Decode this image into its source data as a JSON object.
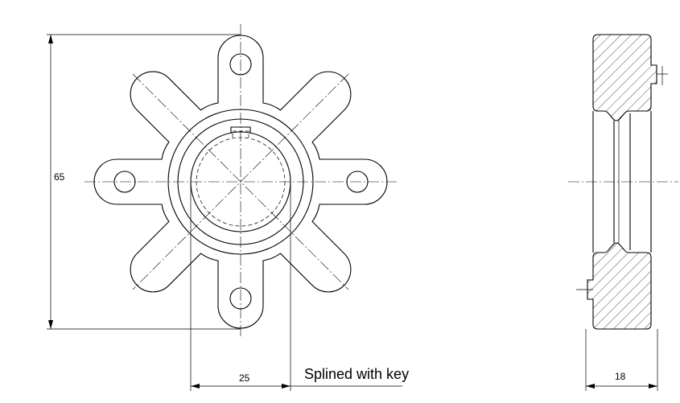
{
  "dimensions": {
    "overall_height": "65",
    "spline_width": "25",
    "thickness": "18"
  },
  "annotations": {
    "spline_note": "Splined with key"
  }
}
